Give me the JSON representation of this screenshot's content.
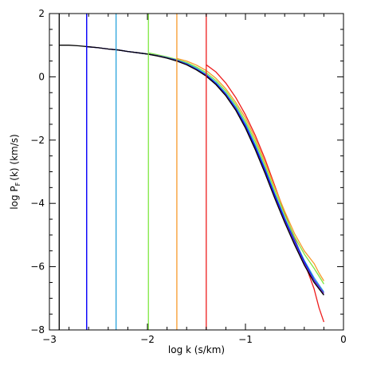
{
  "chart_data": {
    "type": "line",
    "xlabel": "log k (s/km)",
    "ylabel": "log P_F(k) (km/s)",
    "ylabel_main": "log P",
    "ylabel_sub": "F",
    "ylabel_rest": "(k) (km/s)",
    "xlim": [
      -3,
      0
    ],
    "ylim": [
      -8,
      2
    ],
    "x_ticks": [
      -3,
      -2,
      -1,
      0
    ],
    "y_ticks": [
      -8,
      -6,
      -4,
      -2,
      0,
      2
    ],
    "x_tick_labels": [
      "−3",
      "−2",
      "−1",
      "0"
    ],
    "y_tick_labels": [
      "−8",
      "−6",
      "−4",
      "−2",
      "0",
      "2"
    ],
    "x_minor_step": 0.2,
    "y_minor_step": 0.5,
    "grid": false,
    "series": [
      {
        "color": "#000000",
        "cutoff": -2.9,
        "x": [
          -2.9,
          -2.8,
          -2.7,
          -2.6,
          -2.5,
          -2.4,
          -2.3,
          -2.2,
          -2.1,
          -2.0,
          -1.9,
          -1.8,
          -1.7,
          -1.6,
          -1.5,
          -1.4,
          -1.3,
          -1.2,
          -1.1,
          -1.0,
          -0.9,
          -0.8,
          -0.7,
          -0.6,
          -0.5,
          -0.4,
          -0.3,
          -0.2
        ],
        "y": [
          1.0,
          1.0,
          0.98,
          0.95,
          0.92,
          0.88,
          0.85,
          0.8,
          0.76,
          0.72,
          0.66,
          0.59,
          0.5,
          0.38,
          0.22,
          0.02,
          -0.25,
          -0.6,
          -1.05,
          -1.62,
          -2.3,
          -3.05,
          -3.85,
          -4.6,
          -5.3,
          -5.95,
          -6.5,
          -6.9
        ]
      },
      {
        "color": "#7b35c8",
        "cutoff": -2.62,
        "x": [
          -2.62,
          -2.6,
          -2.5,
          -2.4,
          -2.3,
          -2.2,
          -2.1,
          -2.0,
          -1.9,
          -1.8,
          -1.7,
          -1.6,
          -1.5,
          -1.4,
          -1.3,
          -1.2,
          -1.1,
          -1.0,
          -0.9,
          -0.8,
          -0.7,
          -0.6,
          -0.5,
          -0.4,
          -0.3,
          -0.2
        ],
        "y": [
          0.95,
          0.95,
          0.92,
          0.88,
          0.85,
          0.8,
          0.76,
          0.72,
          0.67,
          0.6,
          0.51,
          0.39,
          0.23,
          0.03,
          -0.24,
          -0.58,
          -1.03,
          -1.6,
          -2.28,
          -3.02,
          -3.82,
          -4.56,
          -5.25,
          -5.9,
          -6.45,
          -6.85
        ]
      },
      {
        "color": "#0000ff",
        "cutoff": -2.62,
        "x": [
          -2.62,
          -2.5,
          -2.4,
          -2.3,
          -2.2,
          -2.1,
          -2.0,
          -1.9,
          -1.8,
          -1.7,
          -1.6,
          -1.5,
          -1.4,
          -1.3,
          -1.2,
          -1.1,
          -1.0,
          -0.9,
          -0.8,
          -0.7,
          -0.6,
          -0.5,
          -0.4,
          -0.3,
          -0.2
        ],
        "y": [
          0.95,
          0.92,
          0.88,
          0.85,
          0.8,
          0.76,
          0.72,
          0.67,
          0.6,
          0.52,
          0.4,
          0.24,
          0.05,
          -0.22,
          -0.56,
          -1.0,
          -1.55,
          -2.22,
          -2.95,
          -3.75,
          -4.5,
          -5.2,
          -5.85,
          -6.42,
          -6.85
        ]
      },
      {
        "color": "#29a3dc",
        "cutoff": -2.32,
        "x": [
          -2.32,
          -2.3,
          -2.2,
          -2.1,
          -2.0,
          -1.9,
          -1.8,
          -1.7,
          -1.6,
          -1.5,
          -1.4,
          -1.3,
          -1.2,
          -1.1,
          -1.0,
          -0.9,
          -0.8,
          -0.7,
          -0.6,
          -0.5,
          -0.4,
          -0.3,
          -0.2
        ],
        "y": [
          0.86,
          0.85,
          0.8,
          0.76,
          0.72,
          0.67,
          0.61,
          0.53,
          0.42,
          0.27,
          0.08,
          -0.18,
          -0.52,
          -0.95,
          -1.48,
          -2.15,
          -2.9,
          -3.7,
          -4.45,
          -5.15,
          -5.8,
          -6.35,
          -6.8
        ]
      },
      {
        "color": "#7ee83f",
        "cutoff": -1.99,
        "x": [
          -1.99,
          -1.9,
          -1.8,
          -1.7,
          -1.6,
          -1.5,
          -1.4,
          -1.3,
          -1.2,
          -1.1,
          -1.0,
          -0.9,
          -0.8,
          -0.7,
          -0.6,
          -0.5,
          -0.4,
          -0.3,
          -0.25,
          -0.2
        ],
        "y": [
          0.76,
          0.7,
          0.63,
          0.55,
          0.45,
          0.31,
          0.13,
          -0.12,
          -0.45,
          -0.88,
          -1.4,
          -2.05,
          -2.8,
          -3.6,
          -4.35,
          -5.05,
          -5.6,
          -6.05,
          -6.3,
          -6.55
        ]
      },
      {
        "color": "#f79a2c",
        "cutoff": -1.7,
        "x": [
          -1.7,
          -1.6,
          -1.5,
          -1.4,
          -1.3,
          -1.2,
          -1.1,
          -1.0,
          -0.9,
          -0.8,
          -0.7,
          -0.6,
          -0.5,
          -0.4,
          -0.3,
          -0.25,
          -0.2
        ],
        "y": [
          0.58,
          0.5,
          0.37,
          0.2,
          -0.05,
          -0.38,
          -0.8,
          -1.3,
          -1.95,
          -2.7,
          -3.5,
          -4.25,
          -4.95,
          -5.5,
          -5.9,
          -6.2,
          -6.45
        ]
      },
      {
        "color": "#ee1c1c",
        "cutoff": -1.4,
        "x": [
          -1.4,
          -1.3,
          -1.2,
          -1.1,
          -1.0,
          -0.9,
          -0.8,
          -0.7,
          -0.6,
          -0.5,
          -0.4,
          -0.3,
          -0.25,
          -0.2
        ],
        "y": [
          0.38,
          0.15,
          -0.2,
          -0.65,
          -1.2,
          -1.85,
          -2.6,
          -3.45,
          -4.3,
          -5.1,
          -5.85,
          -6.7,
          -7.3,
          -7.75
        ]
      }
    ]
  }
}
